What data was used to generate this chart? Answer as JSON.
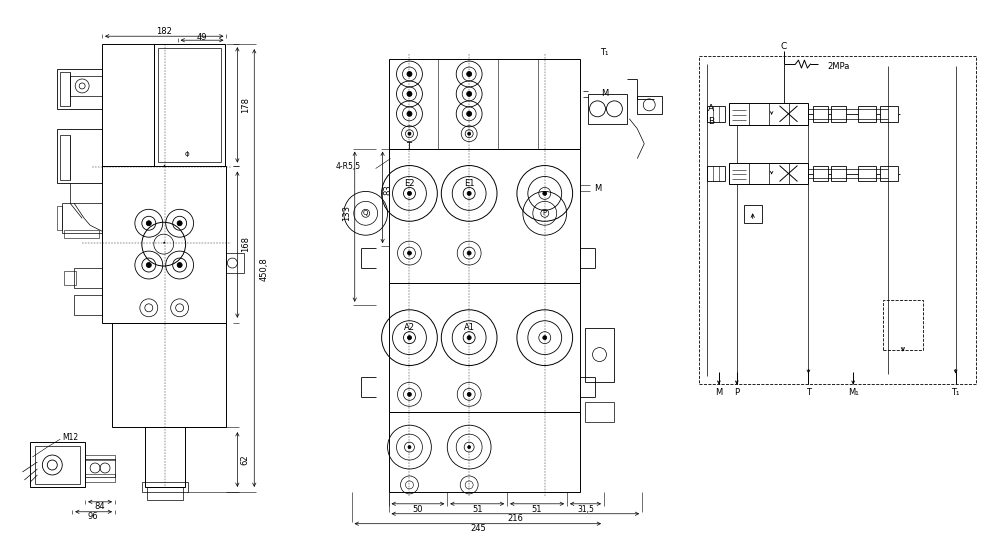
{
  "bg_color": "#ffffff",
  "lc": "#000000",
  "fig_w": 10.0,
  "fig_h": 5.43,
  "dpi": 100,
  "dims_left": {
    "182": "182",
    "49": "49",
    "178": "178",
    "168": "168",
    "450_8": "450,8",
    "62": "62",
    "84": "84",
    "96": "96",
    "M12": "M12"
  },
  "dims_center": {
    "4R55": "4-R5,5",
    "T": "T",
    "M": "M",
    "Q": "Q",
    "E2": "E2",
    "A2": "A2",
    "P": "P",
    "133": "133",
    "83": "83",
    "50": "50",
    "51a": "51",
    "51b": "51",
    "31_5": "31,5",
    "216": "216",
    "245": "245",
    "T1": "T₁"
  },
  "dims_schematic": {
    "C": "C",
    "2MPa": "2MPa",
    "A": "A",
    "B": "B",
    "M": "M",
    "P": "P",
    "T": "T",
    "M1": "M₁",
    "T1": "T₁"
  }
}
